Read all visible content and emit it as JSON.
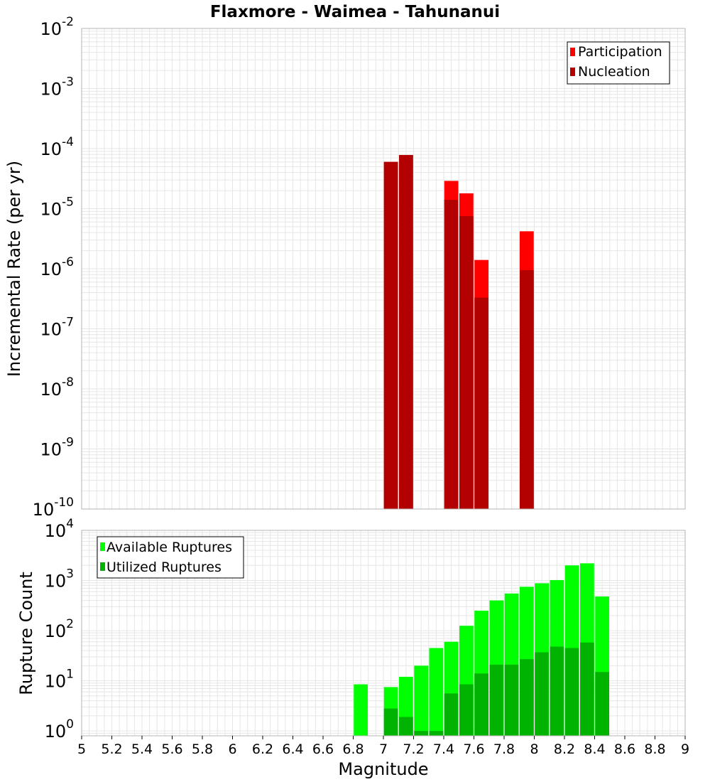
{
  "title": "Flaxmore - Waimea - Tahunanui",
  "xlabel": "Magnitude",
  "colors": {
    "participation": "#ff0000",
    "nucleation": "#b30000",
    "available": "#00ff00",
    "utilized": "#00b300",
    "grid": "#e6e6e6",
    "border": "#b4b4b4",
    "bar_separator": "#ffffff"
  },
  "chart_data": [
    {
      "type": "bar",
      "title": "Flaxmore - Waimea - Tahunanui",
      "xlabel": "Magnitude",
      "ylabel": "Incremental Rate (per yr)",
      "yscale": "log",
      "xlim": [
        5,
        9
      ],
      "ylim": [
        1e-10,
        0.01
      ],
      "y_tick_bases": [
        "10",
        "10",
        "10",
        "10",
        "10",
        "10",
        "10",
        "10",
        "10"
      ],
      "y_tick_exps": [
        "-10",
        "-9",
        "-8",
        "-7",
        "-6",
        "-5",
        "-4",
        "-3",
        "-2"
      ],
      "legend_placement": "top-right",
      "bin_width": 0.1,
      "series": [
        {
          "name": "Participation",
          "x": [
            7.05,
            7.15,
            7.45,
            7.55,
            7.65,
            7.95
          ],
          "values": [
            6e-05,
            7.8e-05,
            2.9e-05,
            1.8e-05,
            1.4e-06,
            4.2e-06
          ]
        },
        {
          "name": "Nucleation",
          "x": [
            7.05,
            7.15,
            7.45,
            7.55,
            7.65,
            7.95
          ],
          "values": [
            6e-05,
            7.8e-05,
            1.4e-05,
            7.5e-06,
            3.3e-07,
            9.5e-07
          ]
        }
      ]
    },
    {
      "type": "bar",
      "ylabel": "Rupture Count",
      "yscale": "log",
      "xlim": [
        5,
        9
      ],
      "ylim": [
        0.8,
        10000
      ],
      "y_tick_bases": [
        "10",
        "10",
        "10",
        "10",
        "10"
      ],
      "y_tick_exps": [
        "0",
        "1",
        "2",
        "3",
        "4"
      ],
      "x_ticks": [
        "5",
        "5.2",
        "5.4",
        "5.6",
        "5.8",
        "6",
        "6.2",
        "6.4",
        "6.6",
        "6.8",
        "7",
        "7.2",
        "7.4",
        "7.6",
        "7.8",
        "8",
        "8.2",
        "8.4",
        "8.6",
        "8.8",
        "9"
      ],
      "legend_placement": "top-left",
      "bin_width": 0.1,
      "series": [
        {
          "name": "Available Ruptures",
          "x": [
            6.85,
            7.05,
            7.15,
            7.25,
            7.35,
            7.45,
            7.55,
            7.65,
            7.75,
            7.85,
            7.95,
            8.05,
            8.15,
            8.25,
            8.35,
            8.45
          ],
          "values": [
            8.5,
            7.5,
            12,
            20,
            45,
            60,
            125,
            250,
            400,
            550,
            750,
            880,
            1020,
            2000,
            2200,
            480
          ]
        },
        {
          "name": "Utilized Ruptures",
          "x": [
            7.05,
            7.15,
            7.25,
            7.35,
            7.45,
            7.55,
            7.65,
            7.75,
            7.85,
            7.95,
            8.05,
            8.15,
            8.25,
            8.35,
            8.45
          ],
          "values": [
            2.8,
            1.9,
            1,
            1,
            5.6,
            8.5,
            14,
            21,
            21,
            27,
            37,
            48,
            45,
            58,
            15
          ]
        }
      ]
    }
  ]
}
